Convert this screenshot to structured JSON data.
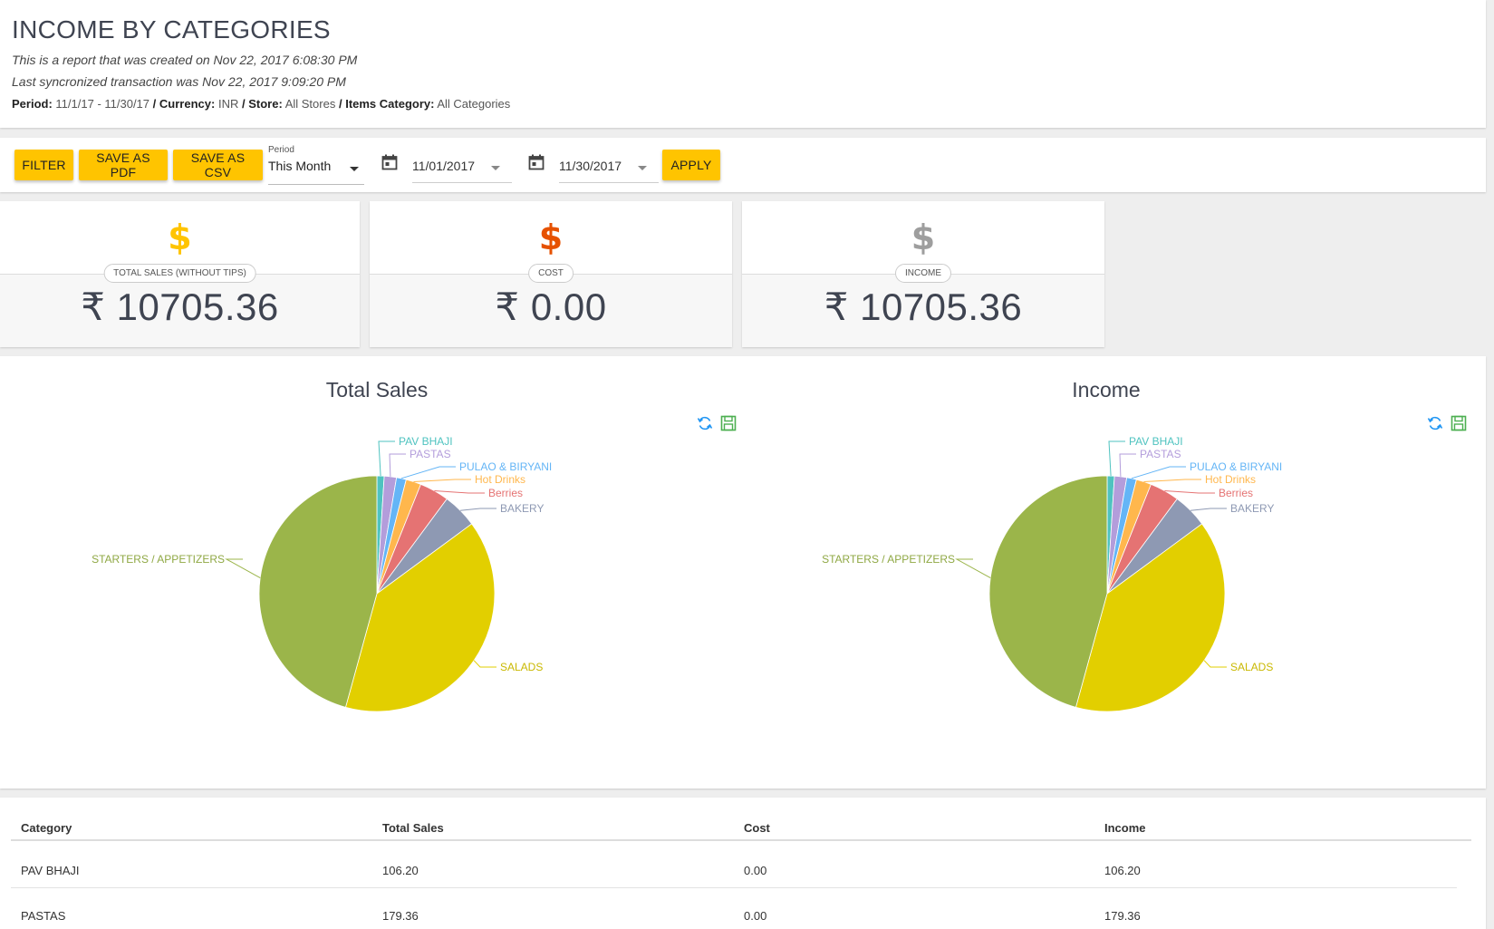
{
  "header": {
    "title": "INCOME BY CATEGORIES",
    "created_line": "This is a report that was created on Nov 22, 2017 6:08:30 PM",
    "sync_line": "Last syncronized transaction was Nov 22, 2017 9:09:20 PM",
    "period_label": "Period:",
    "period_value": "11/1/17 - 11/30/17",
    "currency_label": "Currency:",
    "currency_value": "INR",
    "store_label": "Store:",
    "store_value": "All Stores",
    "category_label": "Items Category:",
    "category_value": "All Categories",
    "separator": "/"
  },
  "toolbar": {
    "filter_label": "FILTER",
    "save_pdf_label": "SAVE AS PDF",
    "save_csv_label": "SAVE AS CSV",
    "period_caption": "Period",
    "period_selected": "This Month",
    "start_date": "11/01/2017",
    "end_date": "11/30/2017",
    "apply_label": "APPLY"
  },
  "kpis": [
    {
      "label": "TOTAL SALES (WITHOUT TIPS)",
      "value": "₹ 10705.36",
      "symbol": "$",
      "color": "#ffc400"
    },
    {
      "label": "COST",
      "value": "₹ 0.00",
      "symbol": "$",
      "color": "#e65100"
    },
    {
      "label": "INCOME",
      "value": "₹ 10705.36",
      "symbol": "$",
      "color": "#9e9e9e"
    }
  ],
  "chart_data": [
    {
      "type": "pie",
      "title": "Total Sales",
      "categories": [
        "PAV BHAJI",
        "PASTAS",
        "PULAO & BIRYANI",
        "Hot Drinks",
        "Berries",
        "BAKERY",
        "SALADS",
        "STARTERS / APPETIZERS"
      ],
      "values": [
        106.2,
        179.36,
        143.0,
        222.0,
        434.0,
        511.0,
        4215.0,
        4894.8
      ],
      "colors": [
        "#4fc3c0",
        "#b39ddb",
        "#64b5f6",
        "#ffb74d",
        "#e57373",
        "#8e99b3",
        "#e2cf00",
        "#9bb54a"
      ]
    },
    {
      "type": "pie",
      "title": "Income",
      "categories": [
        "PAV BHAJI",
        "PASTAS",
        "PULAO & BIRYANI",
        "Hot Drinks",
        "Berries",
        "BAKERY",
        "SALADS",
        "STARTERS / APPETIZERS"
      ],
      "values": [
        106.2,
        179.36,
        143.0,
        222.0,
        434.0,
        511.0,
        4215.0,
        4894.8
      ],
      "colors": [
        "#4fc3c0",
        "#b39ddb",
        "#64b5f6",
        "#ffb74d",
        "#e57373",
        "#8e99b3",
        "#e2cf00",
        "#9bb54a"
      ]
    }
  ],
  "table": {
    "columns": [
      "Category",
      "Total Sales",
      "Cost",
      "Income"
    ],
    "rows": [
      [
        "PAV BHAJI",
        "106.20",
        "0.00",
        "106.20"
      ],
      [
        "PASTAS",
        "179.36",
        "0.00",
        "179.36"
      ]
    ]
  }
}
